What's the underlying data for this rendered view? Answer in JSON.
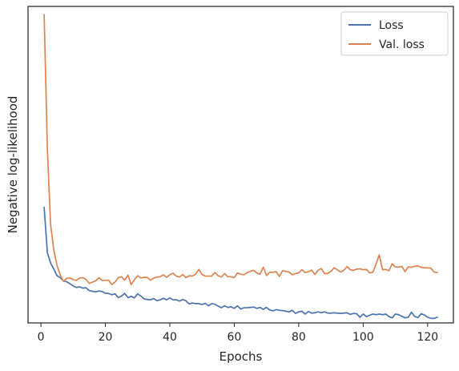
{
  "chart_data": {
    "type": "line",
    "xlabel": "Epochs",
    "ylabel": "Negative log-likelihood",
    "xlim": [
      -4,
      128
    ],
    "ylim": [
      0,
      100
    ],
    "y_ticks_labeled": false,
    "x_ticks": [
      0,
      20,
      40,
      60,
      80,
      100,
      120
    ],
    "grid": false,
    "legend_position": "top-right",
    "series": [
      {
        "name": "Loss",
        "color": "#4c72b0",
        "x": [
          1,
          2,
          3,
          4,
          5,
          6,
          7,
          8,
          9,
          10,
          11,
          12,
          13,
          14,
          15,
          16,
          17,
          18,
          19,
          20,
          21,
          22,
          23,
          24,
          25,
          26,
          27,
          28,
          29,
          30,
          31,
          32,
          33,
          34,
          35,
          36,
          37,
          38,
          39,
          40,
          41,
          42,
          43,
          44,
          45,
          46,
          47,
          48,
          49,
          50,
          51,
          52,
          53,
          54,
          55,
          56,
          57,
          58,
          59,
          60,
          61,
          62,
          63,
          64,
          65,
          66,
          67,
          68,
          69,
          70,
          71,
          72,
          73,
          74,
          75,
          76,
          77,
          78,
          79,
          80,
          81,
          82,
          83,
          84,
          85,
          86,
          87,
          88,
          89,
          90,
          91,
          92,
          93,
          94,
          95,
          96,
          97,
          98,
          99,
          100,
          101,
          102,
          103,
          104,
          105,
          106,
          107,
          108,
          109,
          110,
          111,
          112,
          113,
          114,
          115,
          116,
          117,
          118,
          119,
          120,
          121,
          122,
          123
        ],
        "y": [
          36.5,
          22.2,
          18.9,
          17.0,
          14.9,
          14.3,
          13.3,
          13.0,
          12.4,
          11.7,
          11.2,
          11.4,
          11.0,
          11.1,
          10.2,
          10.0,
          9.8,
          10.1,
          9.9,
          9.4,
          9.3,
          8.9,
          9.2,
          8.0,
          8.5,
          9.3,
          8.0,
          8.4,
          7.9,
          9.2,
          8.5,
          7.6,
          7.4,
          7.3,
          7.7,
          7.0,
          7.3,
          7.8,
          7.3,
          7.9,
          7.3,
          7.3,
          6.9,
          7.4,
          7.0,
          6.0,
          6.3,
          6.1,
          6.1,
          5.8,
          6.2,
          5.4,
          6.1,
          5.9,
          5.3,
          4.8,
          5.4,
          4.9,
          5.1,
          4.6,
          5.4,
          4.4,
          4.8,
          4.8,
          4.9,
          5.0,
          4.6,
          4.9,
          4.3,
          4.9,
          4.1,
          3.8,
          4.2,
          4.0,
          3.9,
          3.7,
          3.5,
          4.0,
          3.0,
          3.5,
          3.7,
          2.8,
          3.6,
          3.1,
          3.2,
          3.5,
          3.2,
          3.5,
          3.1,
          3.1,
          3.2,
          3.1,
          3.0,
          3.1,
          3.2,
          2.7,
          3.0,
          2.9,
          1.8,
          2.8,
          2.0,
          2.4,
          2.8,
          2.6,
          2.8,
          2.6,
          2.8,
          2.0,
          1.6,
          2.8,
          2.6,
          2.1,
          1.6,
          1.8,
          3.4,
          2.0,
          1.7,
          2.9,
          2.5,
          1.8,
          1.5,
          1.4,
          1.8
        ]
      },
      {
        "name": "Val. loss",
        "color": "#dd8452",
        "x": [
          1,
          2,
          3,
          4,
          5,
          6,
          7,
          8,
          9,
          10,
          11,
          12,
          13,
          14,
          15,
          16,
          17,
          18,
          19,
          20,
          21,
          22,
          23,
          24,
          25,
          26,
          27,
          28,
          29,
          30,
          31,
          32,
          33,
          34,
          35,
          36,
          37,
          38,
          39,
          40,
          41,
          42,
          43,
          44,
          45,
          46,
          47,
          48,
          49,
          50,
          51,
          52,
          53,
          54,
          55,
          56,
          57,
          58,
          59,
          60,
          61,
          62,
          63,
          64,
          65,
          66,
          67,
          68,
          69,
          70,
          71,
          72,
          73,
          74,
          75,
          76,
          77,
          78,
          79,
          80,
          81,
          82,
          83,
          84,
          85,
          86,
          87,
          88,
          89,
          90,
          91,
          92,
          93,
          94,
          95,
          96,
          97,
          98,
          99,
          100,
          101,
          102,
          103,
          104,
          105,
          106,
          107,
          108,
          109,
          110,
          111,
          112,
          113,
          114,
          115,
          116,
          117,
          118,
          119,
          120,
          121,
          122,
          123
        ],
        "y": [
          97.4,
          55.0,
          31.0,
          23.0,
          18.1,
          15.2,
          13.1,
          14.1,
          14.2,
          13.7,
          13.4,
          14.2,
          14.3,
          13.7,
          12.5,
          12.9,
          13.3,
          14.3,
          13.4,
          13.4,
          13.5,
          12.1,
          12.9,
          14.3,
          14.6,
          13.5,
          15.1,
          12.1,
          13.6,
          14.9,
          14.2,
          14.4,
          14.4,
          13.5,
          14.2,
          14.5,
          14.6,
          15.2,
          14.4,
          15.2,
          15.7,
          14.8,
          14.5,
          15.3,
          14.3,
          14.9,
          14.8,
          15.4,
          16.9,
          15.3,
          14.8,
          14.8,
          14.8,
          15.9,
          14.9,
          14.5,
          15.6,
          14.6,
          14.6,
          14.3,
          15.8,
          15.4,
          15.2,
          15.9,
          16.3,
          16.6,
          15.8,
          15.4,
          17.6,
          15.0,
          16.0,
          16.0,
          16.2,
          14.7,
          16.5,
          16.3,
          16.1,
          15.2,
          15.6,
          15.8,
          16.8,
          15.9,
          16.2,
          16.7,
          15.3,
          16.6,
          17.2,
          15.6,
          15.6,
          16.3,
          17.4,
          16.8,
          16.1,
          16.6,
          17.8,
          16.8,
          16.6,
          17.0,
          17.1,
          16.8,
          16.9,
          15.8,
          16.0,
          18.6,
          21.5,
          16.8,
          16.9,
          16.5,
          18.7,
          17.7,
          17.6,
          17.9,
          16.2,
          17.7,
          17.6,
          17.9,
          18.0,
          17.6,
          17.4,
          17.4,
          17.3,
          16.1,
          15.9
        ]
      }
    ]
  }
}
